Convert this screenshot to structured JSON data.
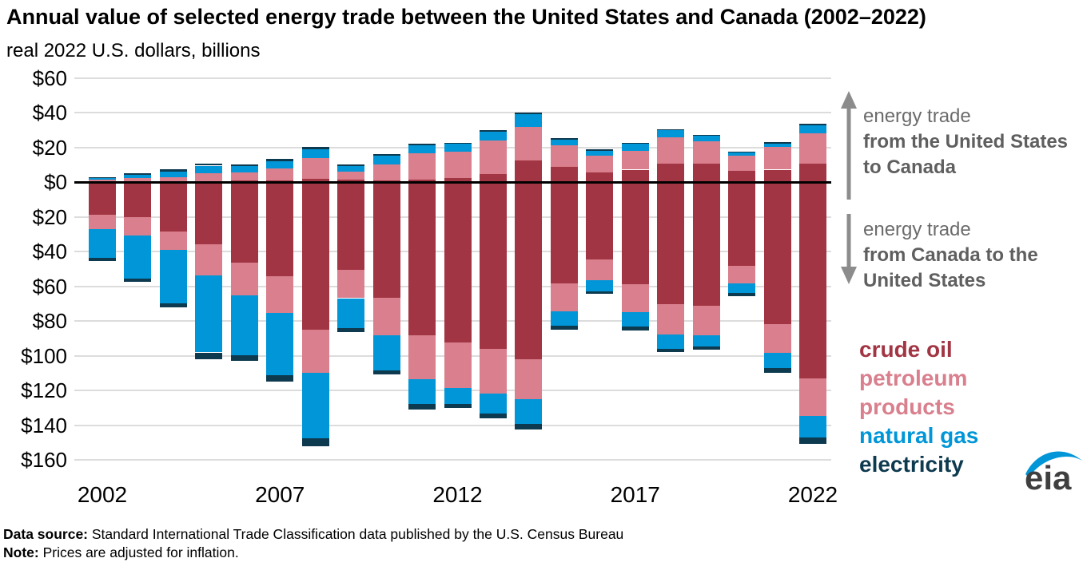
{
  "header": {
    "title": "Annual value of selected energy trade between the United States and Canada (2002–2022)",
    "subtitle": "real 2022 U.S. dollars, billions"
  },
  "y_axis": {
    "ticks": [
      {
        "value": 60,
        "label": "$60"
      },
      {
        "value": 40,
        "label": "$40"
      },
      {
        "value": 20,
        "label": "$20"
      },
      {
        "value": 0,
        "label": "$0"
      },
      {
        "value": -20,
        "label": "$20"
      },
      {
        "value": -40,
        "label": "$40"
      },
      {
        "value": -60,
        "label": "$60"
      },
      {
        "value": -80,
        "label": "$80"
      },
      {
        "value": -100,
        "label": "$100"
      },
      {
        "value": -120,
        "label": "$120"
      },
      {
        "value": -140,
        "label": "$140"
      },
      {
        "value": -160,
        "label": "$160"
      }
    ]
  },
  "x_axis": {
    "ticks": [
      {
        "year_index": 0,
        "label": "2002"
      },
      {
        "year_index": 5,
        "label": "2007"
      },
      {
        "year_index": 10,
        "label": "2012"
      },
      {
        "year_index": 15,
        "label": "2017"
      },
      {
        "year_index": 20,
        "label": "2022"
      }
    ]
  },
  "annotations": {
    "up": {
      "line1": "energy trade",
      "line2": "from the United States to Canada"
    },
    "down": {
      "line1": "energy trade",
      "line2": "from Canada to the United States"
    }
  },
  "legend": {
    "items": [
      {
        "label": "crude oil",
        "color": "#a23543"
      },
      {
        "label": "petroleum products",
        "color": "#d97f8d"
      },
      {
        "label": "natural gas",
        "color": "#0096d7"
      },
      {
        "label": "electricity",
        "color": "#0e3a4f"
      }
    ]
  },
  "footer": {
    "source_label": "Data source:",
    "source_text": " Standard International Trade Classification data published by the U.S. Census Bureau",
    "note_label": "Note:",
    "note_text": " Prices are adjusted for inflation."
  },
  "logo_text": "eia",
  "chart_data": {
    "type": "bar",
    "subtype": "diverging-stacked",
    "title": "Annual value of selected energy trade between the United States and Canada (2002–2022)",
    "units": "real 2022 U.S. dollars, billions",
    "ylim": [
      -160,
      60
    ],
    "gridline_step": 20,
    "grid": "on",
    "years": [
      2002,
      2003,
      2004,
      2005,
      2006,
      2007,
      2008,
      2009,
      2010,
      2011,
      2012,
      2013,
      2014,
      2015,
      2016,
      2017,
      2018,
      2019,
      2020,
      2021,
      2022
    ],
    "above_axis": {
      "meaning": "energy trade from the United States to Canada (billion 2022 USD)",
      "series": [
        {
          "name": "crude oil",
          "color": "#a23543",
          "values": [
            0.3,
            0.4,
            0.5,
            0.7,
            1.1,
            1.2,
            2.1,
            1.5,
            1.1,
            1.7,
            2.3,
            4.9,
            12.5,
            9.0,
            5.8,
            7.3,
            10.9,
            10.6,
            6.4,
            7.3,
            10.9
          ]
        },
        {
          "name": "petroleum products",
          "color": "#d97f8d",
          "values": [
            1.2,
            2.0,
            2.6,
            4.6,
            4.4,
            7.0,
            12.0,
            4.7,
            9.4,
            14.9,
            15.5,
            19.0,
            19.6,
            12.2,
            9.4,
            10.6,
            15.2,
            12.9,
            8.8,
            12.9,
            17.2
          ]
        },
        {
          "name": "natural gas",
          "color": "#0096d7",
          "values": [
            1.1,
            2.0,
            3.2,
            4.3,
            3.8,
            3.9,
            5.0,
            3.3,
            4.9,
            4.9,
            4.3,
            5.2,
            7.0,
            3.3,
            2.9,
            4.6,
            3.9,
            3.3,
            2.3,
            2.1,
            4.7
          ]
        },
        {
          "name": "electricity",
          "color": "#0e3a4f",
          "values": [
            0.3,
            1.0,
            1.1,
            1.3,
            1.2,
            1.4,
            1.5,
            0.9,
            0.9,
            0.9,
            0.5,
            0.9,
            0.9,
            0.9,
            0.9,
            0.3,
            0.4,
            0.3,
            0.3,
            0.9,
            1.0
          ]
        }
      ]
    },
    "below_axis": {
      "meaning": "energy trade from Canada to the United States (billion 2022 USD, plotted downward)",
      "series": [
        {
          "name": "crude oil",
          "color": "#a23543",
          "values": [
            18.5,
            20.3,
            28.4,
            35.8,
            46.2,
            54.2,
            85.1,
            50.4,
            66.4,
            88.4,
            92.2,
            96.0,
            102.1,
            58.5,
            44.4,
            58.8,
            70.2,
            71.4,
            48.2,
            81.6,
            113.0
          ]
        },
        {
          "name": "petroleum products",
          "color": "#d97f8d",
          "values": [
            8.3,
            10.2,
            10.7,
            17.7,
            19.1,
            21.0,
            24.9,
            16.4,
            21.7,
            25.1,
            26.6,
            25.8,
            23.1,
            16.0,
            12.2,
            16.0,
            17.5,
            16.7,
            9.9,
            16.7,
            21.7
          ]
        },
        {
          "name": "natural gas",
          "color": "#0096d7",
          "values": [
            16.8,
            24.9,
            30.7,
            44.6,
            34.3,
            36.0,
            37.4,
            17.3,
            20.4,
            14.1,
            8.8,
            11.4,
            14.1,
            8.2,
            6.1,
            8.4,
            8.1,
            6.4,
            5.8,
            8.8,
            12.6
          ]
        },
        {
          "name": "electricity",
          "color": "#0e3a4f",
          "values": [
            1.8,
            2.0,
            2.4,
            4.1,
            3.1,
            3.8,
            4.6,
            2.4,
            2.4,
            3.3,
            2.3,
            2.7,
            3.0,
            2.4,
            1.8,
            2.3,
            2.1,
            2.0,
            1.8,
            2.6,
            3.3
          ]
        }
      ]
    }
  }
}
